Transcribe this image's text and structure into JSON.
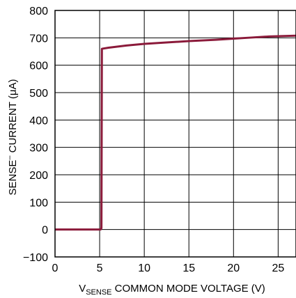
{
  "chart_data": {
    "type": "line",
    "title": "",
    "xlabel": {
      "main": "V",
      "subscript": "SENSE",
      "rest": " COMMON MODE VOLTAGE (V)"
    },
    "ylabel": {
      "before": "SENSE",
      "superscript": "–",
      "after": " CURRENT (μA)"
    },
    "xlim": [
      0,
      27
    ],
    "ylim": [
      -100,
      800
    ],
    "xticks": [
      0,
      5,
      10,
      15,
      20,
      25
    ],
    "yticks": [
      -100,
      0,
      100,
      200,
      300,
      400,
      500,
      600,
      700,
      800
    ],
    "ytick_labels": [
      "−100",
      "0",
      "100",
      "200",
      "300",
      "400",
      "500",
      "600",
      "700",
      "800"
    ],
    "grid": true,
    "series": [
      {
        "color": "#8b1a3a",
        "x": [
          0,
          5.1,
          5.2,
          5.25,
          6,
          8,
          10,
          12,
          15,
          18,
          20,
          22,
          24,
          26,
          27
        ],
        "y": [
          0,
          0,
          5,
          660,
          664,
          672,
          678,
          682,
          688,
          693,
          697,
          701,
          705,
          707,
          708
        ]
      }
    ]
  }
}
